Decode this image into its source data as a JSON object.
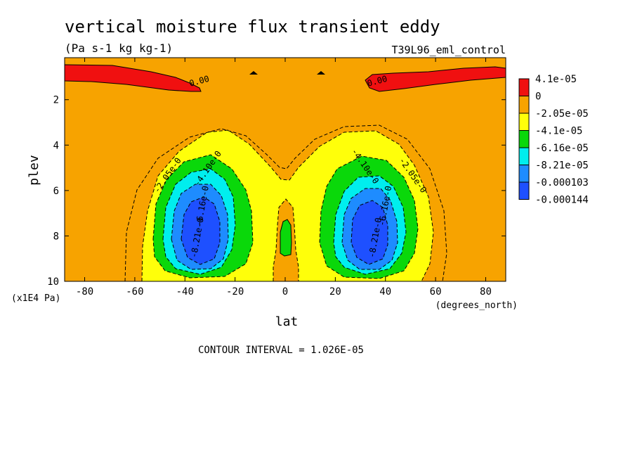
{
  "chart_data": {
    "type": "contour",
    "title": "vertical moisture flux transient eddy",
    "units": "(Pa s-1 kg kg-1)",
    "dataset": "T39L96_eml_control",
    "xlabel": "lat",
    "xunits": "(degrees_north)",
    "ylabel": "plev",
    "yunits": "(x1E4 Pa)",
    "xlim": [
      -88,
      88
    ],
    "ylim": [
      0.15,
      10
    ],
    "y_inverted": true,
    "x_ticks": [
      -80,
      -60,
      -40,
      -20,
      0,
      20,
      40,
      60,
      80
    ],
    "y_ticks": [
      2,
      4,
      6,
      8,
      10
    ],
    "contour_interval_label": "CONTOUR INTERVAL = 1.026E-05",
    "contour_labels": [
      {
        "text": "0.00",
        "lat": -34,
        "plev": 1.3
      },
      {
        "text": "0.00",
        "lat": 37,
        "plev": 1.3
      },
      {
        "text": "-2.05e-0",
        "lat": -46,
        "plev": 5.4
      },
      {
        "text": "-4.10e-0",
        "lat": -30,
        "plev": 5.1
      },
      {
        "text": "-6.16e-0",
        "lat": -32,
        "plev": 6.7
      },
      {
        "text": "-8.21e-0",
        "lat": -34,
        "plev": 8.1
      },
      {
        "text": "-4.10e-0",
        "lat": 31,
        "plev": 5.0
      },
      {
        "text": "-2.05e-0",
        "lat": 50,
        "plev": 5.4
      },
      {
        "text": "-6.16e-0",
        "lat": 41,
        "plev": 6.7
      },
      {
        "text": "-8.21e-0",
        "lat": 37,
        "plev": 8.1
      }
    ],
    "colorbar": [
      {
        "label": "4.1e-05",
        "color": "#f01010"
      },
      {
        "label": "0",
        "color": "#f7a300"
      },
      {
        "label": "-2.05e-05",
        "color": "#ffff0a"
      },
      {
        "label": "-4.1e-05",
        "color": "#0ad80a"
      },
      {
        "label": "-6.16e-05",
        "color": "#00eeee"
      },
      {
        "label": "-8.21e-05",
        "color": "#1e8cff"
      },
      {
        "label": "-0.000103",
        "color": "#1e50ff"
      },
      {
        "label": "-0.000144",
        "color": ""
      }
    ]
  }
}
